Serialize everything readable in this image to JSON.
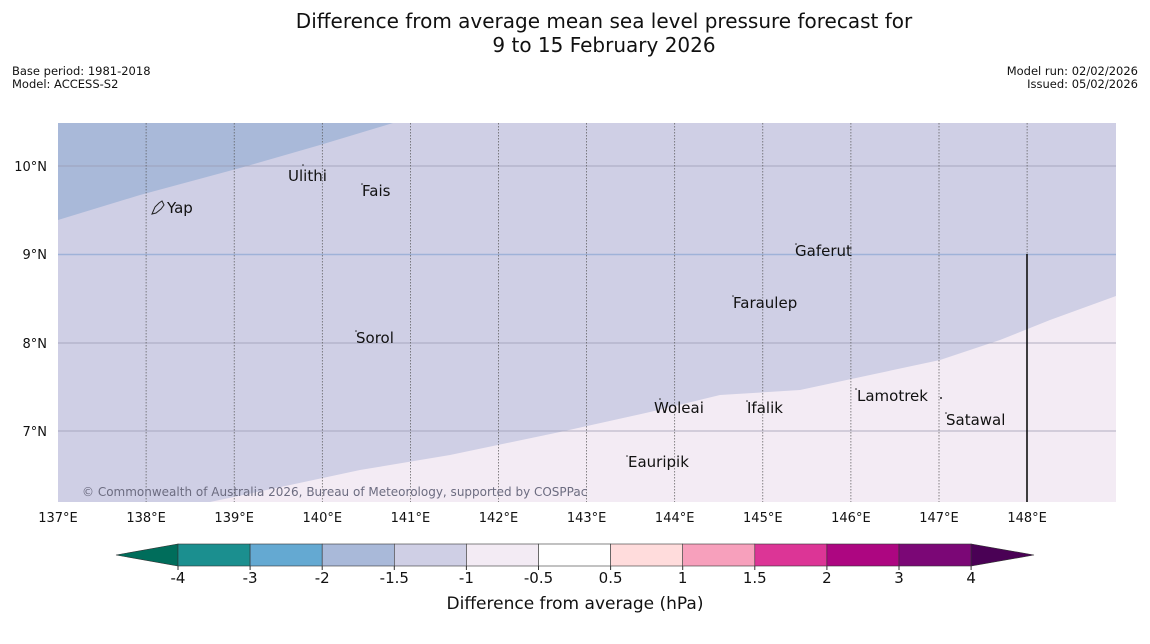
{
  "title_line1": "Difference from average mean sea level pressure forecast for",
  "title_line2": "9 to 15 February 2026",
  "info_left": [
    "Base period: 1981-2018",
    "Model: ACCESS-S2"
  ],
  "info_right": [
    "Model run: 02/02/2026",
    "Issued: 05/02/2026"
  ],
  "copyright": "© Commonwealth of Australia 2026, Bureau of Meteorology, supported by COSPPac",
  "lon_labels": [
    "137°E",
    "138°E",
    "139°E",
    "140°E",
    "141°E",
    "142°E",
    "143°E",
    "144°E",
    "145°E",
    "146°E",
    "147°E",
    "148°E"
  ],
  "lat_labels": [
    "10°N",
    "9°N",
    "8°N",
    "7°N"
  ],
  "places": [
    {
      "name": "Yap"
    },
    {
      "name": "Ulithi"
    },
    {
      "name": "Fais"
    },
    {
      "name": "Gaferut"
    },
    {
      "name": "Faraulep"
    },
    {
      "name": "Sorol"
    },
    {
      "name": "Woleai"
    },
    {
      "name": "Ifalik"
    },
    {
      "name": "Lamotrek"
    },
    {
      "name": "Satawal"
    },
    {
      "name": "Eauripik"
    }
  ],
  "colorbar": {
    "label": "Difference from average (hPa)",
    "ticks": [
      "-4",
      "-3",
      "-2",
      "-1.5",
      "-1",
      "-0.5",
      "0.5",
      "1",
      "1.5",
      "2",
      "3",
      "4"
    ],
    "colors": [
      "#1b8f8f",
      "#64a9d2",
      "#a9b9d9",
      "#cfcfe5",
      "#f3ebf4",
      "#ffffff",
      "#ffdcdc",
      "#f7a0bc",
      "#dc3596",
      "#ad0681",
      "#7b0776"
    ],
    "under_color": "#006d5b",
    "over_color": "#4a0155"
  },
  "field_colors": {
    "band_m2_m15": "#a9b9d9",
    "band_m15_m1": "#cfcfe5",
    "band_m1_m05": "#f3ebf4"
  }
}
